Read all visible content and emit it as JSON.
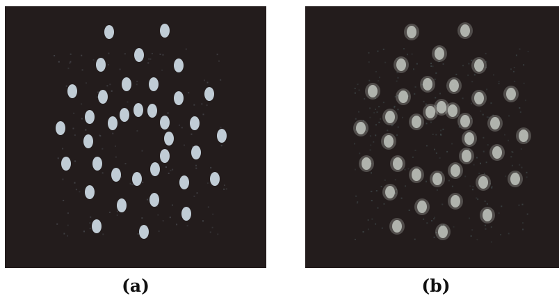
{
  "figure": {
    "panels": [
      {
        "id": "a",
        "caption": "(a)",
        "background": "#231c1c",
        "spot_color": "#c9d6df"
      },
      {
        "id": "b",
        "caption": "(b)",
        "background": "#231c1c",
        "spot_color": "#c8cdc6"
      }
    ]
  }
}
